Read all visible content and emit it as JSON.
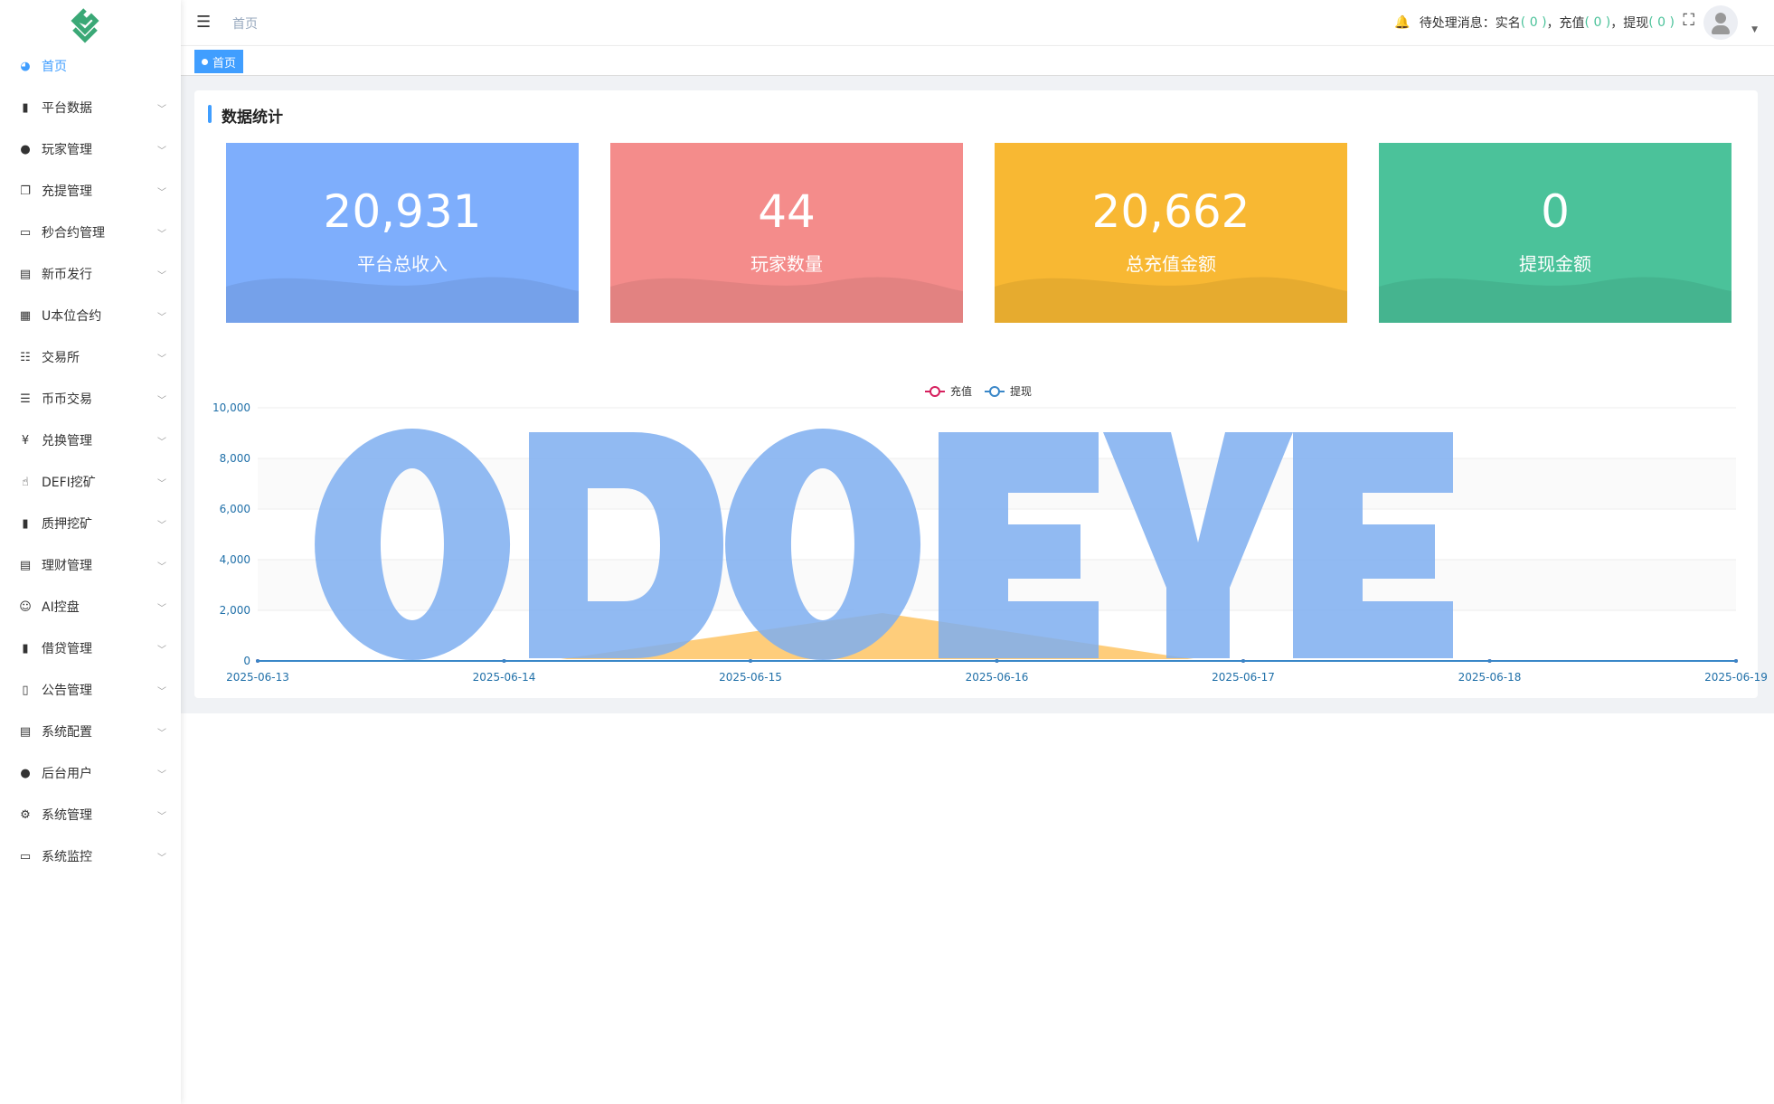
{
  "sidebar": {
    "items": [
      {
        "label": "首页",
        "icon": "dashboard-icon",
        "active": true
      },
      {
        "label": "平台数据",
        "icon": "book-icon"
      },
      {
        "label": "玩家管理",
        "icon": "user-icon"
      },
      {
        "label": "充提管理",
        "icon": "copy-icon"
      },
      {
        "label": "秒合约管理",
        "icon": "chart-monitor-icon"
      },
      {
        "label": "新币发行",
        "icon": "card-icon"
      },
      {
        "label": "U本位合约",
        "icon": "table-icon"
      },
      {
        "label": "交易所",
        "icon": "tree-list-icon"
      },
      {
        "label": "币币交易",
        "icon": "list-icon"
      },
      {
        "label": "兑换管理",
        "icon": "yen-icon"
      },
      {
        "label": "DEFI挖矿",
        "icon": "hand-icon"
      },
      {
        "label": "质押挖矿",
        "icon": "bar-chart-icon"
      },
      {
        "label": "理财管理",
        "icon": "document-icon"
      },
      {
        "label": "AI控盘",
        "icon": "robot-icon"
      },
      {
        "label": "借贷管理",
        "icon": "book-icon"
      },
      {
        "label": "公告管理",
        "icon": "open-book-icon"
      },
      {
        "label": "系统配置",
        "icon": "file-icon"
      },
      {
        "label": "后台用户",
        "icon": "users-icon"
      },
      {
        "label": "系统管理",
        "icon": "gear-icon"
      },
      {
        "label": "系统监控",
        "icon": "monitor-icon"
      }
    ]
  },
  "header": {
    "breadcrumb": "首页",
    "notice_prefix": "待处理消息：",
    "notices": [
      {
        "label": "实名",
        "count": "( 0 )"
      },
      {
        "label": "充值",
        "count": "( 0 )"
      },
      {
        "label": "提现",
        "count": "( 0 )"
      }
    ],
    "sep": "，"
  },
  "tags": [
    {
      "label": "首页"
    }
  ],
  "section_title": "数据统计",
  "stats": [
    {
      "value": "20,931",
      "label": "平台总收入",
      "color": "#7eaefc"
    },
    {
      "value": "44",
      "label": "玩家数量",
      "color": "#f48c8b"
    },
    {
      "value": "20,662",
      "label": "总充值金额",
      "color": "#f8b833"
    },
    {
      "value": "0",
      "label": "提现金额",
      "color": "#4bc29a"
    }
  ],
  "watermark": "ODOEYE",
  "chart_data": {
    "type": "line",
    "x": [
      "2025-06-13",
      "2025-06-14",
      "2025-06-15",
      "2025-06-16",
      "2025-06-17",
      "2025-06-18",
      "2025-06-19"
    ],
    "series": [
      {
        "name": "充值",
        "color": "#d6205e",
        "values": [
          0,
          0,
          0,
          0,
          0,
          0,
          0
        ]
      },
      {
        "name": "提现",
        "color": "#3a87c8",
        "values": [
          0,
          0,
          0,
          0,
          0,
          0,
          0
        ]
      }
    ],
    "ylim": [
      0,
      10000
    ],
    "yticks": [
      "0",
      "2,000",
      "4,000",
      "6,000",
      "8,000",
      "10,000"
    ],
    "legend": "top-center",
    "grid": true
  }
}
